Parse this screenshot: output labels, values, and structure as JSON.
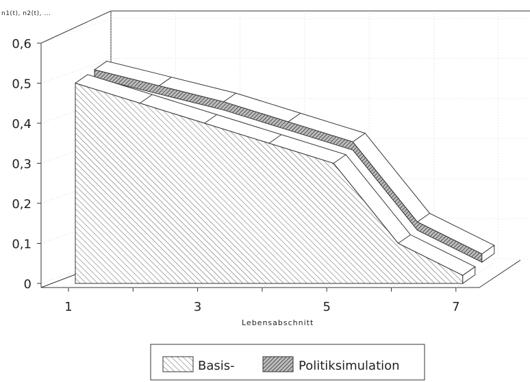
{
  "chart_data": {
    "type": "area",
    "title": "",
    "ylabel": "n1(t), n2(t), ...",
    "xlabel": "Lebensabschnitt",
    "x": [
      1,
      2,
      3,
      4,
      5,
      6,
      7
    ],
    "x_tick_labels": [
      "1",
      "3",
      "5",
      "7"
    ],
    "y_tick_labels": [
      "0",
      "0,1",
      "0,2",
      "0,3",
      "0,4",
      "0,5",
      "0,6"
    ],
    "ylim": [
      0,
      0.6
    ],
    "xlim": [
      1,
      7
    ],
    "grid": true,
    "legend_position": "bottom",
    "projection": "3d",
    "series": [
      {
        "name": "Basis-",
        "pattern": "light-hatch",
        "values": [
          0.5,
          0.45,
          0.4,
          0.35,
          0.3,
          0.1,
          0.02
        ]
      },
      {
        "name": "Politiksimulation",
        "pattern": "dark-hatch",
        "values": [
          0.5,
          0.46,
          0.42,
          0.37,
          0.32,
          0.12,
          0.04
        ]
      }
    ]
  }
}
